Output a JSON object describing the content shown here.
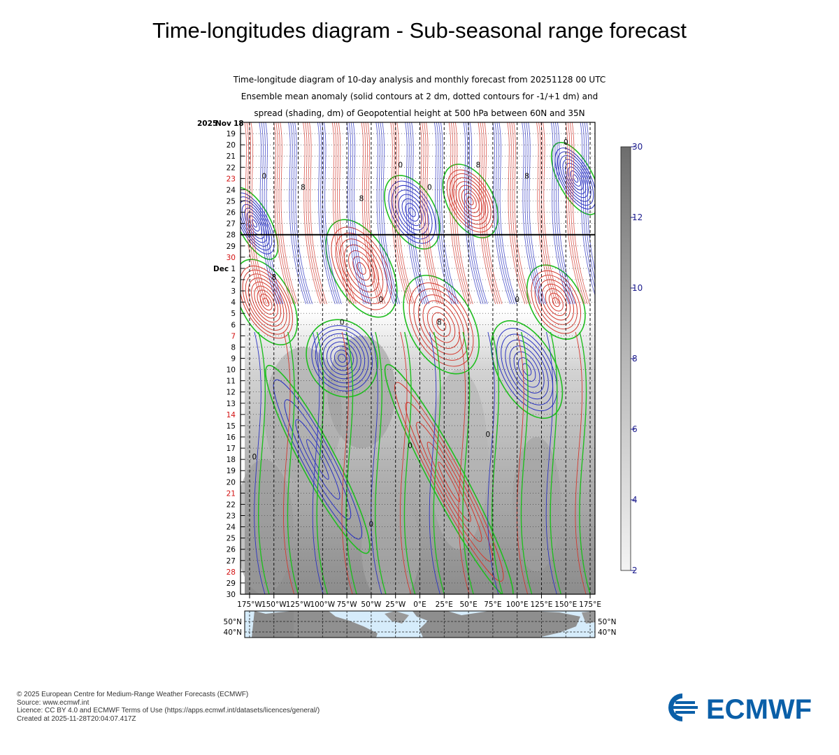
{
  "page": {
    "title": "Time-longitudes diagram - Sub-seasonal range forecast"
  },
  "chart_data": {
    "type": "heatmap",
    "title_lines": [
      "Time-longitude diagram of 10-day analysis and monthly forecast from 20251128 00 UTC",
      "Ensemble mean anomaly (solid contours at 2 dm, dotted contours for -1/+1 dm) and",
      "spread (shading, dm) of Geopotential height at 500 hPa between 60N and 35N"
    ],
    "year_label": "2025",
    "month_label_start": "Nov",
    "month_label_dec": "Dec",
    "day_labels": [
      "18",
      "19",
      "20",
      "21",
      "22",
      "23",
      "24",
      "25",
      "26",
      "27",
      "28",
      "29",
      "30",
      "1",
      "2",
      "3",
      "4",
      "5",
      "6",
      "7",
      "8",
      "9",
      "10",
      "11",
      "12",
      "13",
      "14",
      "15",
      "16",
      "17",
      "18",
      "19",
      "20",
      "21",
      "22",
      "23",
      "24",
      "25",
      "26",
      "27",
      "28",
      "29",
      "30"
    ],
    "weekend_highlight_days": [
      "23",
      "30",
      "7",
      "14",
      "21",
      "28"
    ],
    "forecast_start_line_day": "Nov 28",
    "x_ticks": [
      "175°W",
      "150°W",
      "125°W",
      "100°W",
      "75°W",
      "50°W",
      "25°W",
      "0°E",
      "25°E",
      "50°E",
      "75°E",
      "100°E",
      "125°E",
      "150°E",
      "175°E"
    ],
    "colorbar": {
      "ticks": [
        "2",
        "4",
        "6",
        "8",
        "10",
        "12",
        "30"
      ],
      "range": [
        2,
        30
      ],
      "units": "dm"
    },
    "contour_labels": [
      "0",
      "8",
      "8",
      "0",
      "0",
      "8",
      "8",
      "0",
      "8",
      "0",
      "0",
      "8",
      "0",
      "0",
      "0",
      "0",
      "0"
    ],
    "contour_colors": {
      "positive": "#d43a2f",
      "negative": "#2b33c2",
      "zero": "#1fbf1f"
    },
    "anomaly_features": [
      {
        "lon": -158,
        "day_index": 16,
        "sign": "positive",
        "amplitude": 9,
        "lon_width": 22,
        "day_width": 3.5
      },
      {
        "lon": -170,
        "day_index": 9,
        "sign": "negative",
        "amplitude": 8,
        "lon_width": 14,
        "day_width": 3
      },
      {
        "lon": -80,
        "day_index": 21,
        "sign": "negative",
        "amplitude": 8,
        "lon_width": 30,
        "day_width": 3
      },
      {
        "lon": -60,
        "day_index": 13,
        "sign": "positive",
        "amplitude": 7,
        "lon_width": 25,
        "day_width": 4
      },
      {
        "lon": -8,
        "day_index": 8,
        "sign": "negative",
        "amplitude": 7,
        "lon_width": 20,
        "day_width": 3
      },
      {
        "lon": 22,
        "day_index": 18,
        "sign": "positive",
        "amplitude": 7,
        "lon_width": 28,
        "day_width": 4
      },
      {
        "lon": 52,
        "day_index": 7,
        "sign": "positive",
        "amplitude": 8,
        "lon_width": 20,
        "day_width": 3
      },
      {
        "lon": 110,
        "day_index": 22,
        "sign": "negative",
        "amplitude": 7,
        "lon_width": 25,
        "day_width": 4
      },
      {
        "lon": 140,
        "day_index": 16,
        "sign": "positive",
        "amplitude": 7,
        "lon_width": 22,
        "day_width": 3
      },
      {
        "lon": 160,
        "day_index": 5,
        "sign": "negative",
        "amplitude": 8,
        "lon_width": 15,
        "day_width": 3
      },
      {
        "lon": 30,
        "day_index": 32,
        "sign": "positive",
        "amplitude": 5,
        "lon_width": 15,
        "day_width": 10
      },
      {
        "lon": -105,
        "day_index": 30,
        "sign": "negative",
        "amplitude": 4,
        "lon_width": 15,
        "day_width": 8
      }
    ],
    "map_strip": {
      "lat_labels": [
        "50°N",
        "40°N"
      ]
    }
  },
  "footer": {
    "lines": [
      "© 2025 European Centre for Medium-Range Weather Forecasts (ECMWF)",
      "Source: www.ecmwf.int",
      "Licence: CC BY 4.0 and ECMWF Terms of Use (https://apps.ecmwf.int/datasets/licences/general/)",
      "Created at 2025-11-28T20:04:07.417Z"
    ]
  },
  "logo": {
    "text": "ECMWF",
    "color": "#0a5fa8"
  }
}
